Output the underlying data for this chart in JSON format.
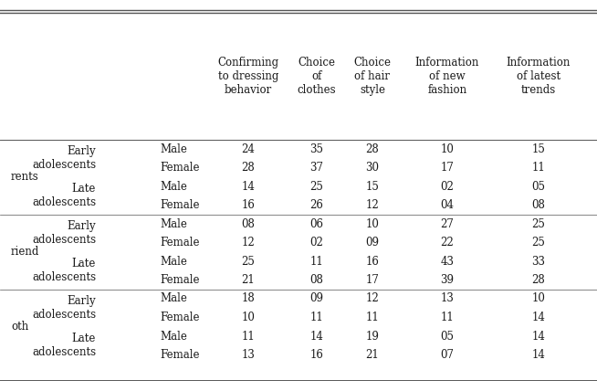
{
  "col_headers": [
    "Confirming\nto dressing\nbehavior",
    "Choice\nof\nclothes",
    "Choice\nof hair\nstyle",
    "Information\nof new\nfashion",
    "Information\nof latest\ntrends"
  ],
  "rows": [
    {
      "group": "Parents",
      "age": "Early\nadolescents",
      "gender": "Male",
      "vals": [
        "24",
        "35",
        "28",
        "10",
        "15"
      ]
    },
    {
      "group": "Parents",
      "age": "Early\nadolescents",
      "gender": "Female",
      "vals": [
        "28",
        "37",
        "30",
        "17",
        "11"
      ]
    },
    {
      "group": "Parents",
      "age": "Late\nadolescents",
      "gender": "Male",
      "vals": [
        "14",
        "25",
        "15",
        "02",
        "05"
      ]
    },
    {
      "group": "Parents",
      "age": "Late\nadolescents",
      "gender": "Female",
      "vals": [
        "16",
        "26",
        "12",
        "04",
        "08"
      ]
    },
    {
      "group": "Friend",
      "age": "Early\nadolescents",
      "gender": "Male",
      "vals": [
        "08",
        "06",
        "10",
        "27",
        "25"
      ]
    },
    {
      "group": "Friend",
      "age": "Early\nadolescents",
      "gender": "Female",
      "vals": [
        "12",
        "02",
        "09",
        "22",
        "25"
      ]
    },
    {
      "group": "Friend",
      "age": "Late\nadolescents",
      "gender": "Male",
      "vals": [
        "25",
        "11",
        "16",
        "43",
        "33"
      ]
    },
    {
      "group": "Friend",
      "age": "Late\nadolescents",
      "gender": "Female",
      "vals": [
        "21",
        "08",
        "17",
        "39",
        "28"
      ]
    },
    {
      "group": "Both",
      "age": "Early\nadolescents",
      "gender": "Male",
      "vals": [
        "18",
        "09",
        "12",
        "13",
        "10"
      ]
    },
    {
      "group": "Both",
      "age": "Early\nadolescents",
      "gender": "Female",
      "vals": [
        "10",
        "11",
        "11",
        "11",
        "14"
      ]
    },
    {
      "group": "Both",
      "age": "Late\nadolescents",
      "gender": "Male",
      "vals": [
        "11",
        "14",
        "19",
        "05",
        "14"
      ]
    },
    {
      "group": "Both",
      "age": "Late\nadolescents",
      "gender": "Female",
      "vals": [
        "13",
        "16",
        "21",
        "07",
        "14"
      ]
    }
  ],
  "group_display": {
    "Parents": "rents",
    "Friend": "riend",
    "Both": "oth"
  },
  "group_rows": {
    "Parents": [
      0,
      3
    ],
    "Friend": [
      4,
      7
    ],
    "Both": [
      8,
      11
    ]
  },
  "age_groups": [
    {
      "group": "Parents",
      "age": "Early\nadolescents",
      "rows": [
        0,
        1
      ]
    },
    {
      "group": "Parents",
      "age": "Late\nadolescents",
      "rows": [
        2,
        3
      ]
    },
    {
      "group": "Friend",
      "age": "Early\nadolescents",
      "rows": [
        4,
        5
      ]
    },
    {
      "group": "Friend",
      "age": "Late\nadolescents",
      "rows": [
        6,
        7
      ]
    },
    {
      "group": "Both",
      "age": "Early\nadolescents",
      "rows": [
        8,
        9
      ]
    },
    {
      "group": "Both",
      "age": "Late\nadolescents",
      "rows": [
        10,
        11
      ]
    }
  ],
  "group_separator_before": [
    4,
    8
  ],
  "bg_color": "#ffffff",
  "text_color": "#1a1a1a",
  "line_color": "#555555",
  "font_size": 8.5,
  "header_font_size": 8.5
}
